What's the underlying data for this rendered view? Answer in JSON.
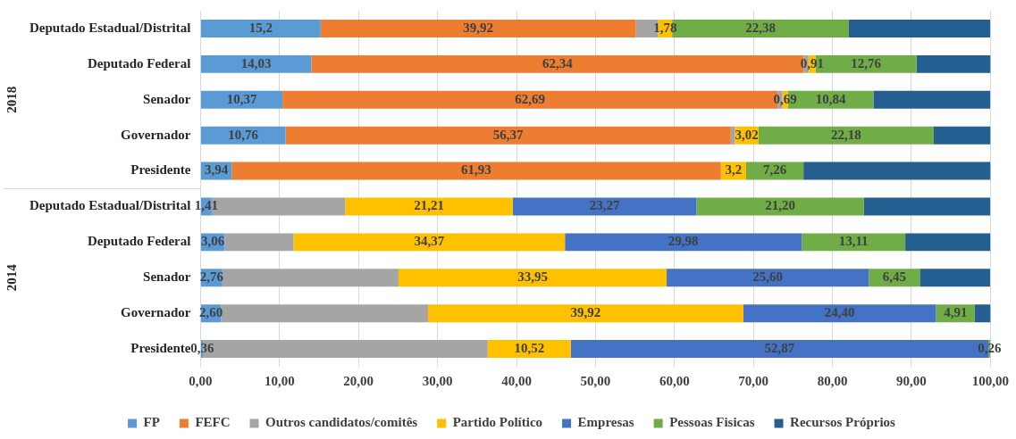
{
  "chart_data": {
    "type": "bar",
    "orientation": "horizontal",
    "stacked": true,
    "categories": [
      "Deputado Estadual/Distrital",
      "Deputado Federal",
      "Senador",
      "Governador",
      "Presidente",
      "Deputado Estadual/Distrital",
      "Deputado Federal",
      "Senador",
      "Governador",
      "Presidente"
    ],
    "series": [
      {
        "name": "FP",
        "color": "#5b9bd5",
        "values": [
          15.2,
          14.03,
          10.37,
          10.76,
          3.94,
          1.41,
          3.06,
          2.76,
          2.6,
          0.36
        ],
        "value_labels": [
          "15,2",
          "14,03",
          "10,37",
          "10,76",
          "3,94",
          "1,41",
          "3,06",
          "2,76",
          "2,60",
          "0,36"
        ]
      },
      {
        "name": "FEFC",
        "color": "#ed7d31",
        "values": [
          39.92,
          62.34,
          62.69,
          56.37,
          61.93,
          0,
          0,
          0,
          0,
          0
        ],
        "value_labels": [
          "39,92",
          "62,34",
          "62,69",
          "56,37",
          "61,93",
          null,
          null,
          null,
          null,
          null
        ]
      },
      {
        "name": "Outros candidatos/comitês",
        "color": "#a5a5a5",
        "values": [
          2.8,
          0.6,
          0.6,
          0.5,
          0,
          16.9,
          8.7,
          22.3,
          26.2,
          36.0
        ],
        "value_labels": [
          null,
          null,
          null,
          null,
          null,
          null,
          null,
          null,
          null,
          null
        ]
      },
      {
        "name": "Partido Político",
        "color": "#ffc000",
        "values": [
          1.78,
          0.91,
          0.69,
          3.02,
          3.2,
          21.21,
          34.37,
          33.95,
          39.92,
          10.52
        ],
        "value_labels": [
          "1,78",
          "0,91",
          "0,69",
          "3,02",
          "3,2",
          "21,21",
          "34,37",
          "33,95",
          "39,92",
          "10,52"
        ]
      },
      {
        "name": "Empresas",
        "color": "#4472c4",
        "values": [
          0,
          0,
          0,
          0,
          0,
          23.27,
          29.98,
          25.6,
          24.4,
          52.87
        ],
        "value_labels": [
          null,
          null,
          null,
          null,
          null,
          "23,27",
          "29,98",
          "25,60",
          "24,40",
          "52,87"
        ]
      },
      {
        "name": "Pessoas Fisicas",
        "color": "#70ad47",
        "values": [
          22.38,
          12.76,
          10.84,
          22.18,
          7.26,
          21.2,
          13.11,
          6.45,
          4.91,
          0.26
        ],
        "value_labels": [
          "22,38",
          "12,76",
          "10,84",
          "22,18",
          "7,26",
          "21,20",
          "13,11",
          "6,45",
          "4,91",
          "0,26"
        ]
      },
      {
        "name": "Recursos Próprios",
        "color": "#255e91",
        "values": [
          17.9,
          9.4,
          14.8,
          7.2,
          23.7,
          16.0,
          10.8,
          8.9,
          2.0,
          0
        ],
        "value_labels": [
          null,
          null,
          null,
          null,
          null,
          null,
          null,
          null,
          null,
          null
        ]
      }
    ],
    "xlim": [
      0,
      100
    ],
    "xticks": [
      {
        "value": 0,
        "label": "0,00"
      },
      {
        "value": 10,
        "label": "10,00"
      },
      {
        "value": 20,
        "label": "20,00"
      },
      {
        "value": 30,
        "label": "30,00"
      },
      {
        "value": 40,
        "label": "40,00"
      },
      {
        "value": 50,
        "label": "50,00"
      },
      {
        "value": 60,
        "label": "60,00"
      },
      {
        "value": 70,
        "label": "70,00"
      },
      {
        "value": 80,
        "label": "80,00"
      },
      {
        "value": 90,
        "label": "90,00"
      },
      {
        "value": 100,
        "label": "100,00"
      }
    ],
    "annotations": [
      "2018",
      "2014"
    ],
    "grid": "x",
    "legend": "bottom"
  }
}
